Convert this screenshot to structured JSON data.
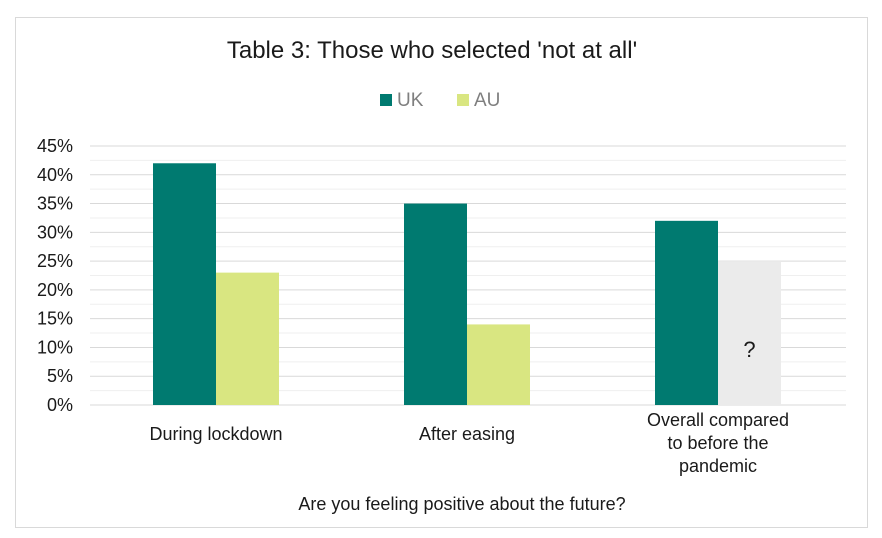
{
  "chart_data": {
    "type": "bar",
    "title": "Table 3: Those who selected 'not at all'",
    "xlabel": "Are you feeling positive about the future?",
    "ylabel": "",
    "ylim": [
      0,
      45
    ],
    "y_ticks": [
      "0%",
      "5%",
      "10%",
      "15%",
      "20%",
      "25%",
      "30%",
      "35%",
      "40%",
      "45%"
    ],
    "grid": true,
    "legend_position": "top-center",
    "categories": [
      [
        "During lockdown"
      ],
      [
        "After easing"
      ],
      [
        "Overall compared",
        "to before the",
        "pandemic"
      ]
    ],
    "series": [
      {
        "name": "UK",
        "color": "#007a70",
        "values": [
          42,
          35,
          32
        ]
      },
      {
        "name": "AU",
        "color": "#d9e681",
        "values": [
          23,
          14,
          25
        ]
      }
    ],
    "placeholder_color": "#ebebeb",
    "annotation": {
      "text": "?",
      "note_target": "AU bar, Overall compared to before the pandemic"
    }
  }
}
